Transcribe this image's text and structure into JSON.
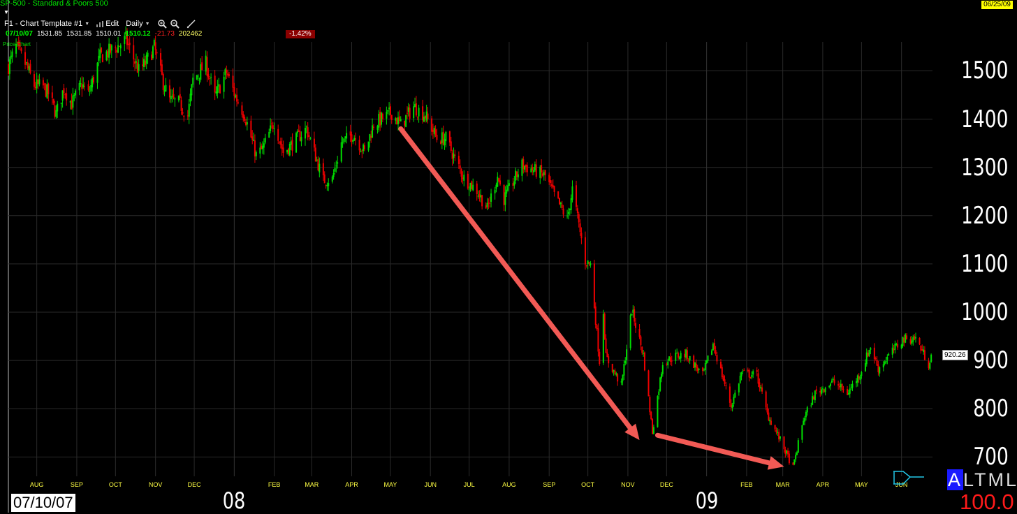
{
  "header": {
    "title": "SP-500 - Standard & Poors 500",
    "date_badge": "06/25/09",
    "template_label": "F1 - Chart Template #1",
    "edit_label": "Edit",
    "period_label": "Daily"
  },
  "ohlc": {
    "date": "07/10/07",
    "open": "1531.85",
    "high": "1531.85",
    "low": "1510.01",
    "close": "1510.12",
    "change": "-21.73",
    "volume": "202462",
    "change_pct": "-1.42%"
  },
  "pane_label": "Price Chart",
  "footer": {
    "start_date": "07/10/07",
    "last_price": "920.26",
    "mode_letters": [
      "A",
      "L",
      "T",
      "M",
      "L"
    ],
    "scale_value": "100.0"
  },
  "colors": {
    "up": "#00dd00",
    "down": "#ee0000",
    "arrow": "#f25a55",
    "month_labels": "#ffff44",
    "title_green": "#00e600"
  },
  "chart_data": {
    "type": "candlestick",
    "title": "SP-500 - Standard & Poors 500",
    "period": "Daily",
    "x_range": [
      "07/10/07",
      "06/25/09"
    ],
    "y_range": [
      660,
      1560
    ],
    "y_ticks": [
      700,
      800,
      900,
      1000,
      1100,
      1200,
      1300,
      1400,
      1500
    ],
    "x_ticks": [
      {
        "label": "AUG",
        "date": "2007-08-01"
      },
      {
        "label": "SEP",
        "date": "2007-09-01"
      },
      {
        "label": "OCT",
        "date": "2007-10-01"
      },
      {
        "label": "NOV",
        "date": "2007-11-01"
      },
      {
        "label": "DEC",
        "date": "2007-12-01"
      },
      {
        "label": "FEB",
        "date": "2008-02-01"
      },
      {
        "label": "MAR",
        "date": "2008-03-01"
      },
      {
        "label": "APR",
        "date": "2008-04-01"
      },
      {
        "label": "MAY",
        "date": "2008-05-01"
      },
      {
        "label": "JUN",
        "date": "2008-06-01"
      },
      {
        "label": "JUL",
        "date": "2008-07-01"
      },
      {
        "label": "AUG",
        "date": "2008-08-01"
      },
      {
        "label": "SEP",
        "date": "2008-09-01"
      },
      {
        "label": "OCT",
        "date": "2008-10-01"
      },
      {
        "label": "NOV",
        "date": "2008-11-01"
      },
      {
        "label": "DEC",
        "date": "2008-12-01"
      },
      {
        "label": "FEB",
        "date": "2009-02-01"
      },
      {
        "label": "MAR",
        "date": "2009-03-01"
      },
      {
        "label": "APR",
        "date": "2009-04-01"
      },
      {
        "label": "MAY",
        "date": "2009-05-01"
      },
      {
        "label": "JUN",
        "date": "2009-06-01"
      }
    ],
    "year_ticks": [
      {
        "label": "08",
        "date": "2008-01-01"
      },
      {
        "label": "09",
        "date": "2009-01-01"
      }
    ],
    "grid": true,
    "price_path": [
      [
        "2007-07-10",
        1510
      ],
      [
        "2007-07-16",
        1549
      ],
      [
        "2007-07-24",
        1510
      ],
      [
        "2007-07-30",
        1470
      ],
      [
        "2007-08-06",
        1467
      ],
      [
        "2007-08-10",
        1453
      ],
      [
        "2007-08-16",
        1411
      ],
      [
        "2007-08-22",
        1464
      ],
      [
        "2007-08-28",
        1432
      ],
      [
        "2007-09-05",
        1472
      ],
      [
        "2007-09-10",
        1451
      ],
      [
        "2007-09-19",
        1529
      ],
      [
        "2007-10-01",
        1547
      ],
      [
        "2007-10-09",
        1565
      ],
      [
        "2007-10-19",
        1500
      ],
      [
        "2007-10-24",
        1515
      ],
      [
        "2007-10-31",
        1549
      ],
      [
        "2007-11-07",
        1475
      ],
      [
        "2007-11-12",
        1439
      ],
      [
        "2007-11-19",
        1434
      ],
      [
        "2007-11-26",
        1407
      ],
      [
        "2007-11-30",
        1481
      ],
      [
        "2007-12-10",
        1515
      ],
      [
        "2007-12-17",
        1445
      ],
      [
        "2007-12-26",
        1497
      ],
      [
        "2008-01-02",
        1447
      ],
      [
        "2008-01-09",
        1409
      ],
      [
        "2008-01-18",
        1325
      ],
      [
        "2008-01-23",
        1338
      ],
      [
        "2008-02-01",
        1395
      ],
      [
        "2008-02-08",
        1331
      ],
      [
        "2008-02-15",
        1349
      ],
      [
        "2008-02-26",
        1381
      ],
      [
        "2008-03-10",
        1273
      ],
      [
        "2008-03-17",
        1276
      ],
      [
        "2008-03-24",
        1350
      ],
      [
        "2008-04-02",
        1369
      ],
      [
        "2008-04-11",
        1332
      ],
      [
        "2008-04-18",
        1390
      ],
      [
        "2008-05-02",
        1413
      ],
      [
        "2008-05-09",
        1388
      ],
      [
        "2008-05-19",
        1426
      ],
      [
        "2008-05-28",
        1408
      ],
      [
        "2008-06-06",
        1360
      ],
      [
        "2008-06-13",
        1360
      ],
      [
        "2008-06-20",
        1317
      ],
      [
        "2008-06-27",
        1278
      ],
      [
        "2008-07-07",
        1252
      ],
      [
        "2008-07-15",
        1214
      ],
      [
        "2008-07-23",
        1282
      ],
      [
        "2008-07-28",
        1234
      ],
      [
        "2008-08-11",
        1305
      ],
      [
        "2008-08-22",
        1292
      ],
      [
        "2008-08-29",
        1282
      ],
      [
        "2008-09-05",
        1242
      ],
      [
        "2008-09-15",
        1192
      ],
      [
        "2008-09-19",
        1255
      ],
      [
        "2008-09-29",
        1106
      ],
      [
        "2008-10-03",
        1099
      ],
      [
        "2008-10-10",
        899
      ],
      [
        "2008-10-13",
        1003
      ],
      [
        "2008-10-15",
        907
      ],
      [
        "2008-10-27",
        848
      ],
      [
        "2008-11-04",
        1005
      ],
      [
        "2008-11-13",
        911
      ],
      [
        "2008-11-20",
        752
      ],
      [
        "2008-11-28",
        896
      ],
      [
        "2008-12-08",
        909
      ],
      [
        "2008-12-16",
        913
      ],
      [
        "2008-12-29",
        869
      ],
      [
        "2009-01-06",
        934
      ],
      [
        "2009-01-20",
        805
      ],
      [
        "2009-01-28",
        874
      ],
      [
        "2009-02-09",
        869
      ],
      [
        "2009-02-17",
        789
      ],
      [
        "2009-02-27",
        735
      ],
      [
        "2009-03-09",
        677
      ],
      [
        "2009-03-17",
        778
      ],
      [
        "2009-03-26",
        832
      ],
      [
        "2009-04-09",
        856
      ],
      [
        "2009-04-20",
        832
      ],
      [
        "2009-04-30",
        873
      ],
      [
        "2009-05-08",
        929
      ],
      [
        "2009-05-14",
        883
      ],
      [
        "2009-05-20",
        903
      ],
      [
        "2009-06-02",
        944
      ],
      [
        "2009-06-12",
        946
      ],
      [
        "2009-06-22",
        893
      ],
      [
        "2009-06-25",
        920
      ]
    ],
    "annotations": [
      {
        "type": "arrow",
        "from": [
          "2008-05-09",
          1380
        ],
        "to": [
          "2008-11-10",
          735
        ]
      },
      {
        "type": "arrow",
        "from": [
          "2008-11-24",
          745
        ],
        "to": [
          "2009-03-02",
          680
        ]
      }
    ]
  }
}
